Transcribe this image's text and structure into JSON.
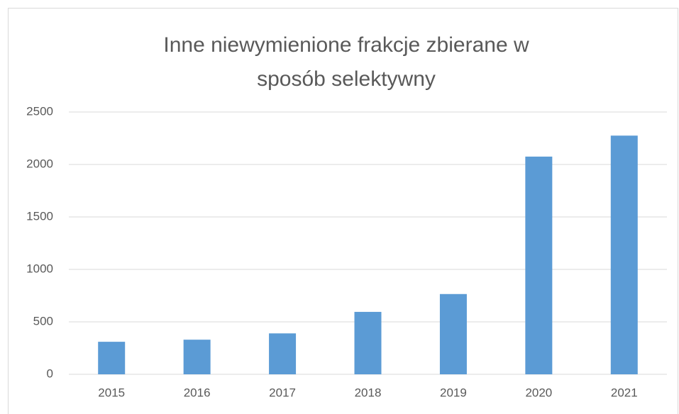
{
  "chart_data": {
    "type": "bar",
    "title": "Inne niewymienione frakcje zbierane w sposób selektywny",
    "categories": [
      "2015",
      "2016",
      "2017",
      "2018",
      "2019",
      "2020",
      "2021"
    ],
    "values": [
      310,
      330,
      390,
      595,
      765,
      2075,
      2275
    ],
    "color": "#5b9bd5",
    "ylim": [
      0,
      2500
    ],
    "yticks": [
      0,
      500,
      1000,
      1500,
      2000,
      2500
    ],
    "grid": true
  }
}
